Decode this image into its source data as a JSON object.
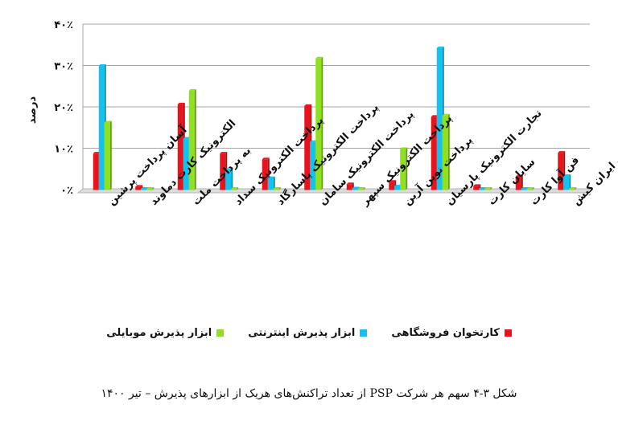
{
  "chart_data": {
    "type": "bar",
    "ylabel": "درصد",
    "ylim": [
      0,
      40
    ],
    "yticks": [
      "۰٪",
      "۱۰٪",
      "۲۰٪",
      "۳۰٪",
      "۴۰٪"
    ],
    "categories": [
      "آسان پرداخت پرشین",
      "الکترونیک کارت دماوند",
      "به پرداخت ملت",
      "پرداخت الکترونیک سداد",
      "پرداخت الکترونیک پاسارگاد",
      "پرداخت الکترونیک سامان",
      "پرداخت الکترونیک سپهر",
      "پرداخت نوین آرین",
      "تجارت الکترونیک پارسیان",
      "سایان کارت",
      "فن آوا کارت",
      "کارت اعتباری ایران کیش"
    ],
    "series": [
      {
        "name": "کارتخوان فروشگاهی",
        "color": "#e8131b",
        "values": [
          8.8,
          0.8,
          20.7,
          8.8,
          7.4,
          20.3,
          1.4,
          2.0,
          17.7,
          1.0,
          3.2,
          9.0
        ]
      },
      {
        "name": "ابزار پذیرش اینترنتی",
        "color": "#12c3f2",
        "values": [
          30.0,
          0.2,
          12.4,
          4.9,
          2.9,
          11.6,
          0.4,
          0.9,
          34.3,
          0.2,
          0.3,
          3.4
        ]
      },
      {
        "name": "ابزار پذیرش موبایلی",
        "color": "#8ee020",
        "values": [
          16.3,
          0.1,
          24.0,
          0.2,
          0.1,
          31.8,
          0.1,
          9.9,
          18.0,
          0.1,
          0.1,
          0.1
        ]
      }
    ],
    "grid": true,
    "legend_position": "bottom"
  },
  "caption": "شکل ۳-۴ سهم هر شرکت PSP از تعداد تراکنش‌های هریک از ابزارهای پذیرش – تیر ۱۴۰۰"
}
